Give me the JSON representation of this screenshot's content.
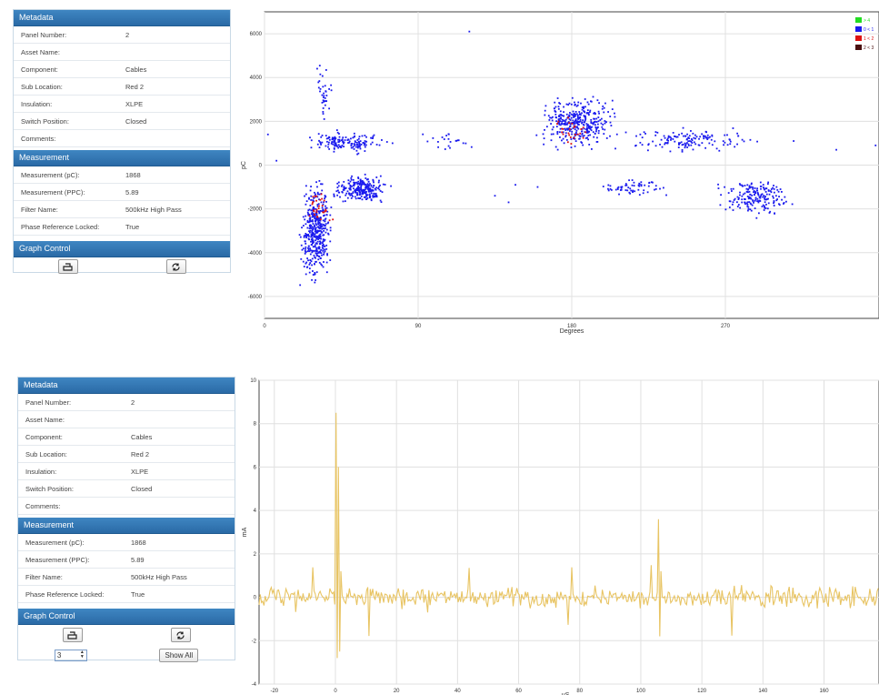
{
  "panels": [
    {
      "metadata_title": "Metadata",
      "metadata": [
        {
          "label": "Panel Number:",
          "value": "2"
        },
        {
          "label": "Asset Name:",
          "value": ""
        },
        {
          "label": "Component:",
          "value": "Cables"
        },
        {
          "label": "Sub Location:",
          "value": "Red 2"
        },
        {
          "label": "Insulation:",
          "value": "XLPE"
        },
        {
          "label": "Switch Position:",
          "value": "Closed"
        },
        {
          "label": "Comments:",
          "value": ""
        }
      ],
      "measurement_title": "Measurement",
      "measurement": [
        {
          "label": "Measurement (pC):",
          "value": "1868"
        },
        {
          "label": "Measurement (PPC):",
          "value": "5.89"
        },
        {
          "label": "Filter Name:",
          "value": "500kHz High Pass"
        },
        {
          "label": "Phase Reference Locked:",
          "value": "True"
        }
      ],
      "graph_control_title": "Graph Control"
    },
    {
      "metadata_title": "Metadata",
      "metadata": [
        {
          "label": "Panel Number:",
          "value": "2"
        },
        {
          "label": "Asset Name:",
          "value": ""
        },
        {
          "label": "Component:",
          "value": "Cables"
        },
        {
          "label": "Sub Location:",
          "value": "Red 2"
        },
        {
          "label": "Insulation:",
          "value": "XLPE"
        },
        {
          "label": "Switch Position:",
          "value": "Closed"
        },
        {
          "label": "Comments:",
          "value": ""
        }
      ],
      "measurement_title": "Measurement",
      "measurement": [
        {
          "label": "Measurement (pC):",
          "value": "1868"
        },
        {
          "label": "Measurement (PPC):",
          "value": "5.89"
        },
        {
          "label": "Filter Name:",
          "value": "500kHz High Pass"
        },
        {
          "label": "Phase Reference Locked:",
          "value": "True"
        }
      ],
      "graph_control_title": "Graph Control",
      "spinner_value": "3",
      "show_all_label": "Show All"
    }
  ],
  "icons": {
    "print": "print-icon",
    "refresh": "refresh-icon"
  },
  "chart_data": [
    {
      "type": "scatter",
      "xlabel": "Degrees",
      "ylabel": "pC",
      "xlim": [
        0,
        360
      ],
      "ylim": [
        -7000,
        7000
      ],
      "x_ticks": [
        0,
        90,
        180,
        270
      ],
      "y_ticks": [
        -6000,
        -4000,
        -2000,
        0,
        2000,
        4000,
        6000
      ],
      "grid": true,
      "legend_position": "top-right",
      "legend": [
        {
          "label": "> 4",
          "color": "#22dd22"
        },
        {
          "label": "0 < 1",
          "color": "#1a1aee"
        },
        {
          "label": "1 < 2",
          "color": "#dd1111"
        },
        {
          "label": "2 < 3",
          "color": "#4a1010"
        }
      ],
      "clusters": [
        {
          "x": [
            20,
            40
          ],
          "y": [
            -5600,
            -600
          ],
          "count": 420,
          "color": "#1a1aee"
        },
        {
          "x": [
            25,
            40
          ],
          "y": [
            -3000,
            -1000
          ],
          "count": 30,
          "color": "#dd1111"
        },
        {
          "x": [
            38,
            75
          ],
          "y": [
            -1800,
            -400
          ],
          "count": 250,
          "color": "#1a1aee"
        },
        {
          "x": [
            22,
            72
          ],
          "y": [
            500,
            1600
          ],
          "count": 150,
          "color": "#1a1aee"
        },
        {
          "x": [
            28,
            40
          ],
          "y": [
            1600,
            4800
          ],
          "count": 35,
          "color": "#1a1aee"
        },
        {
          "x": [
            88,
            125
          ],
          "y": [
            500,
            1600
          ],
          "count": 22,
          "color": "#1a1aee"
        },
        {
          "x": [
            158,
            210
          ],
          "y": [
            600,
            3300
          ],
          "count": 360,
          "color": "#1a1aee"
        },
        {
          "x": [
            165,
            195
          ],
          "y": [
            900,
            2200
          ],
          "count": 25,
          "color": "#dd1111"
        },
        {
          "x": [
            205,
            295
          ],
          "y": [
            500,
            1800
          ],
          "count": 140,
          "color": "#1a1aee"
        },
        {
          "x": [
            190,
            240
          ],
          "y": [
            -1500,
            -600
          ],
          "count": 60,
          "color": "#1a1aee"
        },
        {
          "x": [
            265,
            310
          ],
          "y": [
            -2400,
            -500
          ],
          "count": 190,
          "color": "#1a1aee"
        }
      ],
      "points": [
        [
          120,
          6100
        ],
        [
          2,
          1400
        ],
        [
          7,
          200
        ],
        [
          75,
          1000
        ],
        [
          135,
          -1400
        ],
        [
          143,
          -1700
        ],
        [
          147,
          -900
        ],
        [
          160,
          -1000
        ],
        [
          175,
          1200
        ],
        [
          335,
          700
        ],
        [
          358,
          900
        ],
        [
          310,
          1100
        ],
        [
          300,
          -1000
        ]
      ]
    },
    {
      "type": "line",
      "xlabel": "uS",
      "ylabel": "mA",
      "xlim": [
        -25,
        178
      ],
      "ylim": [
        -4,
        10
      ],
      "x_ticks": [
        -20,
        0,
        20,
        40,
        60,
        80,
        100,
        120,
        140,
        160
      ],
      "y_ticks": [
        -4,
        -2,
        0,
        2,
        4,
        6,
        8,
        10
      ],
      "grid": true,
      "color": "#e8c463",
      "x_step": 0.4,
      "noise_amplitude": 0.5,
      "spikes": [
        {
          "x": 0,
          "values": [
            8.5,
            -2.8,
            6.0,
            -2.5,
            1.2
          ]
        },
        {
          "x": 106,
          "values": [
            3.6,
            -1.8,
            1.2
          ]
        }
      ]
    }
  ]
}
